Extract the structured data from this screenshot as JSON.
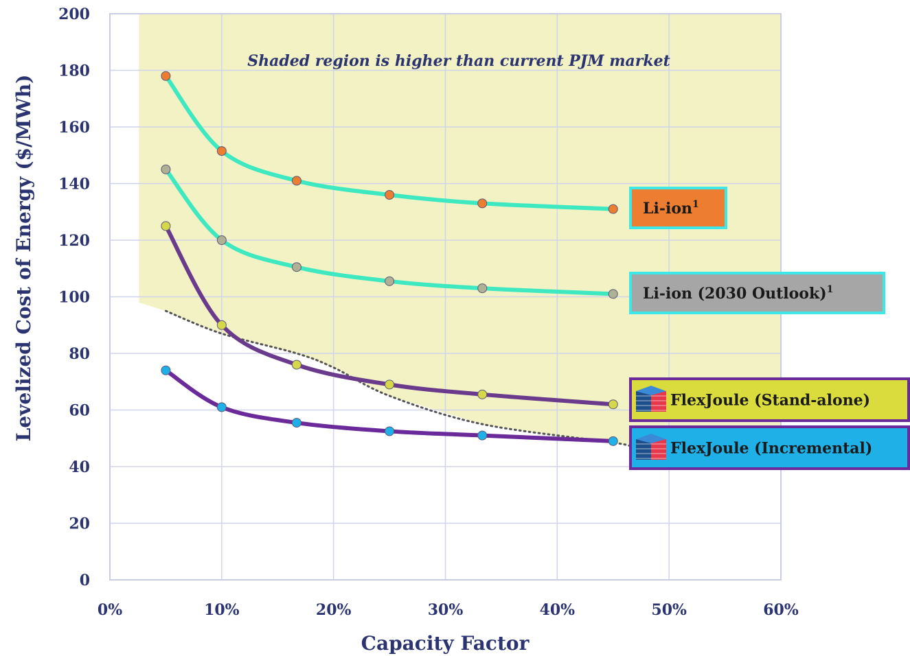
{
  "chart_data": {
    "type": "line",
    "title": "",
    "xlabel": "Capacity Factor",
    "ylabel": "Levelized Cost of Energy  ($/MWh)",
    "xlim": [
      0,
      60
    ],
    "ylim": [
      0,
      200
    ],
    "x_ticks": [
      "0%",
      "10%",
      "20%",
      "30%",
      "40%",
      "50%",
      "60%"
    ],
    "y_ticks": [
      "0",
      "20",
      "40",
      "60",
      "80",
      "100",
      "120",
      "140",
      "160",
      "180",
      "200"
    ],
    "grid": true,
    "annotation": "Shaded region is higher than current PJM market",
    "shaded_region": {
      "color": "#f3f2c4",
      "boundary": [
        [
          2.6,
          98
        ],
        [
          5,
          95
        ],
        [
          10,
          87
        ],
        [
          16.7,
          80
        ],
        [
          20,
          75
        ],
        [
          25,
          65
        ],
        [
          33.3,
          55
        ],
        [
          45,
          48
        ]
      ]
    },
    "market_line": {
      "style": "dotted",
      "color": "#555555",
      "x": [
        5,
        10,
        16.7,
        20,
        25,
        33.3,
        45,
        46.5
      ],
      "y": [
        95,
        87,
        80,
        75,
        65,
        55,
        48.5,
        47
      ]
    },
    "series": [
      {
        "name": "Li-ion",
        "label_sup": "1",
        "line_color": "#3ee8c0",
        "marker_color": "#ed7d31",
        "label_bg": "#ed7d31",
        "label_border": "#3ee8e8",
        "x": [
          5,
          10,
          16.7,
          25,
          33.3,
          45
        ],
        "y": [
          178,
          151.5,
          141,
          136,
          133,
          131
        ]
      },
      {
        "name": "Li-ion (2030 Outlook)",
        "label_sup": "1",
        "line_color": "#3ee8c0",
        "marker_color": "#b0b094",
        "label_bg": "#a6a6a6",
        "label_border": "#3ee8e8",
        "x": [
          5,
          10,
          16.7,
          25,
          33.3,
          45
        ],
        "y": [
          145,
          120,
          110.5,
          105.5,
          103,
          101
        ]
      },
      {
        "name": "FlexJoule (Stand-alone)",
        "label_sup": "",
        "line_color": "#6a3a8c",
        "marker_color": "#d6d84a",
        "label_bg": "#d9dc3c",
        "label_border": "#6a2a9a",
        "x": [
          5,
          10,
          16.7,
          25,
          33.3,
          45
        ],
        "y": [
          125,
          90,
          76,
          69,
          65.5,
          62
        ]
      },
      {
        "name": "FlexJoule (Incremental)",
        "label_sup": "",
        "line_color": "#6a2a9a",
        "marker_color": "#1fb0e8",
        "label_bg": "#1fb0e8",
        "label_border": "#6a2a9a",
        "x": [
          5,
          10,
          16.7,
          25,
          33.3,
          45
        ],
        "y": [
          74,
          61,
          55.5,
          52.5,
          51,
          49
        ]
      }
    ],
    "colors": {
      "axis_text": "#2b3470",
      "grid": "#d0d4ea",
      "plot_border": "#c9cde4"
    }
  }
}
